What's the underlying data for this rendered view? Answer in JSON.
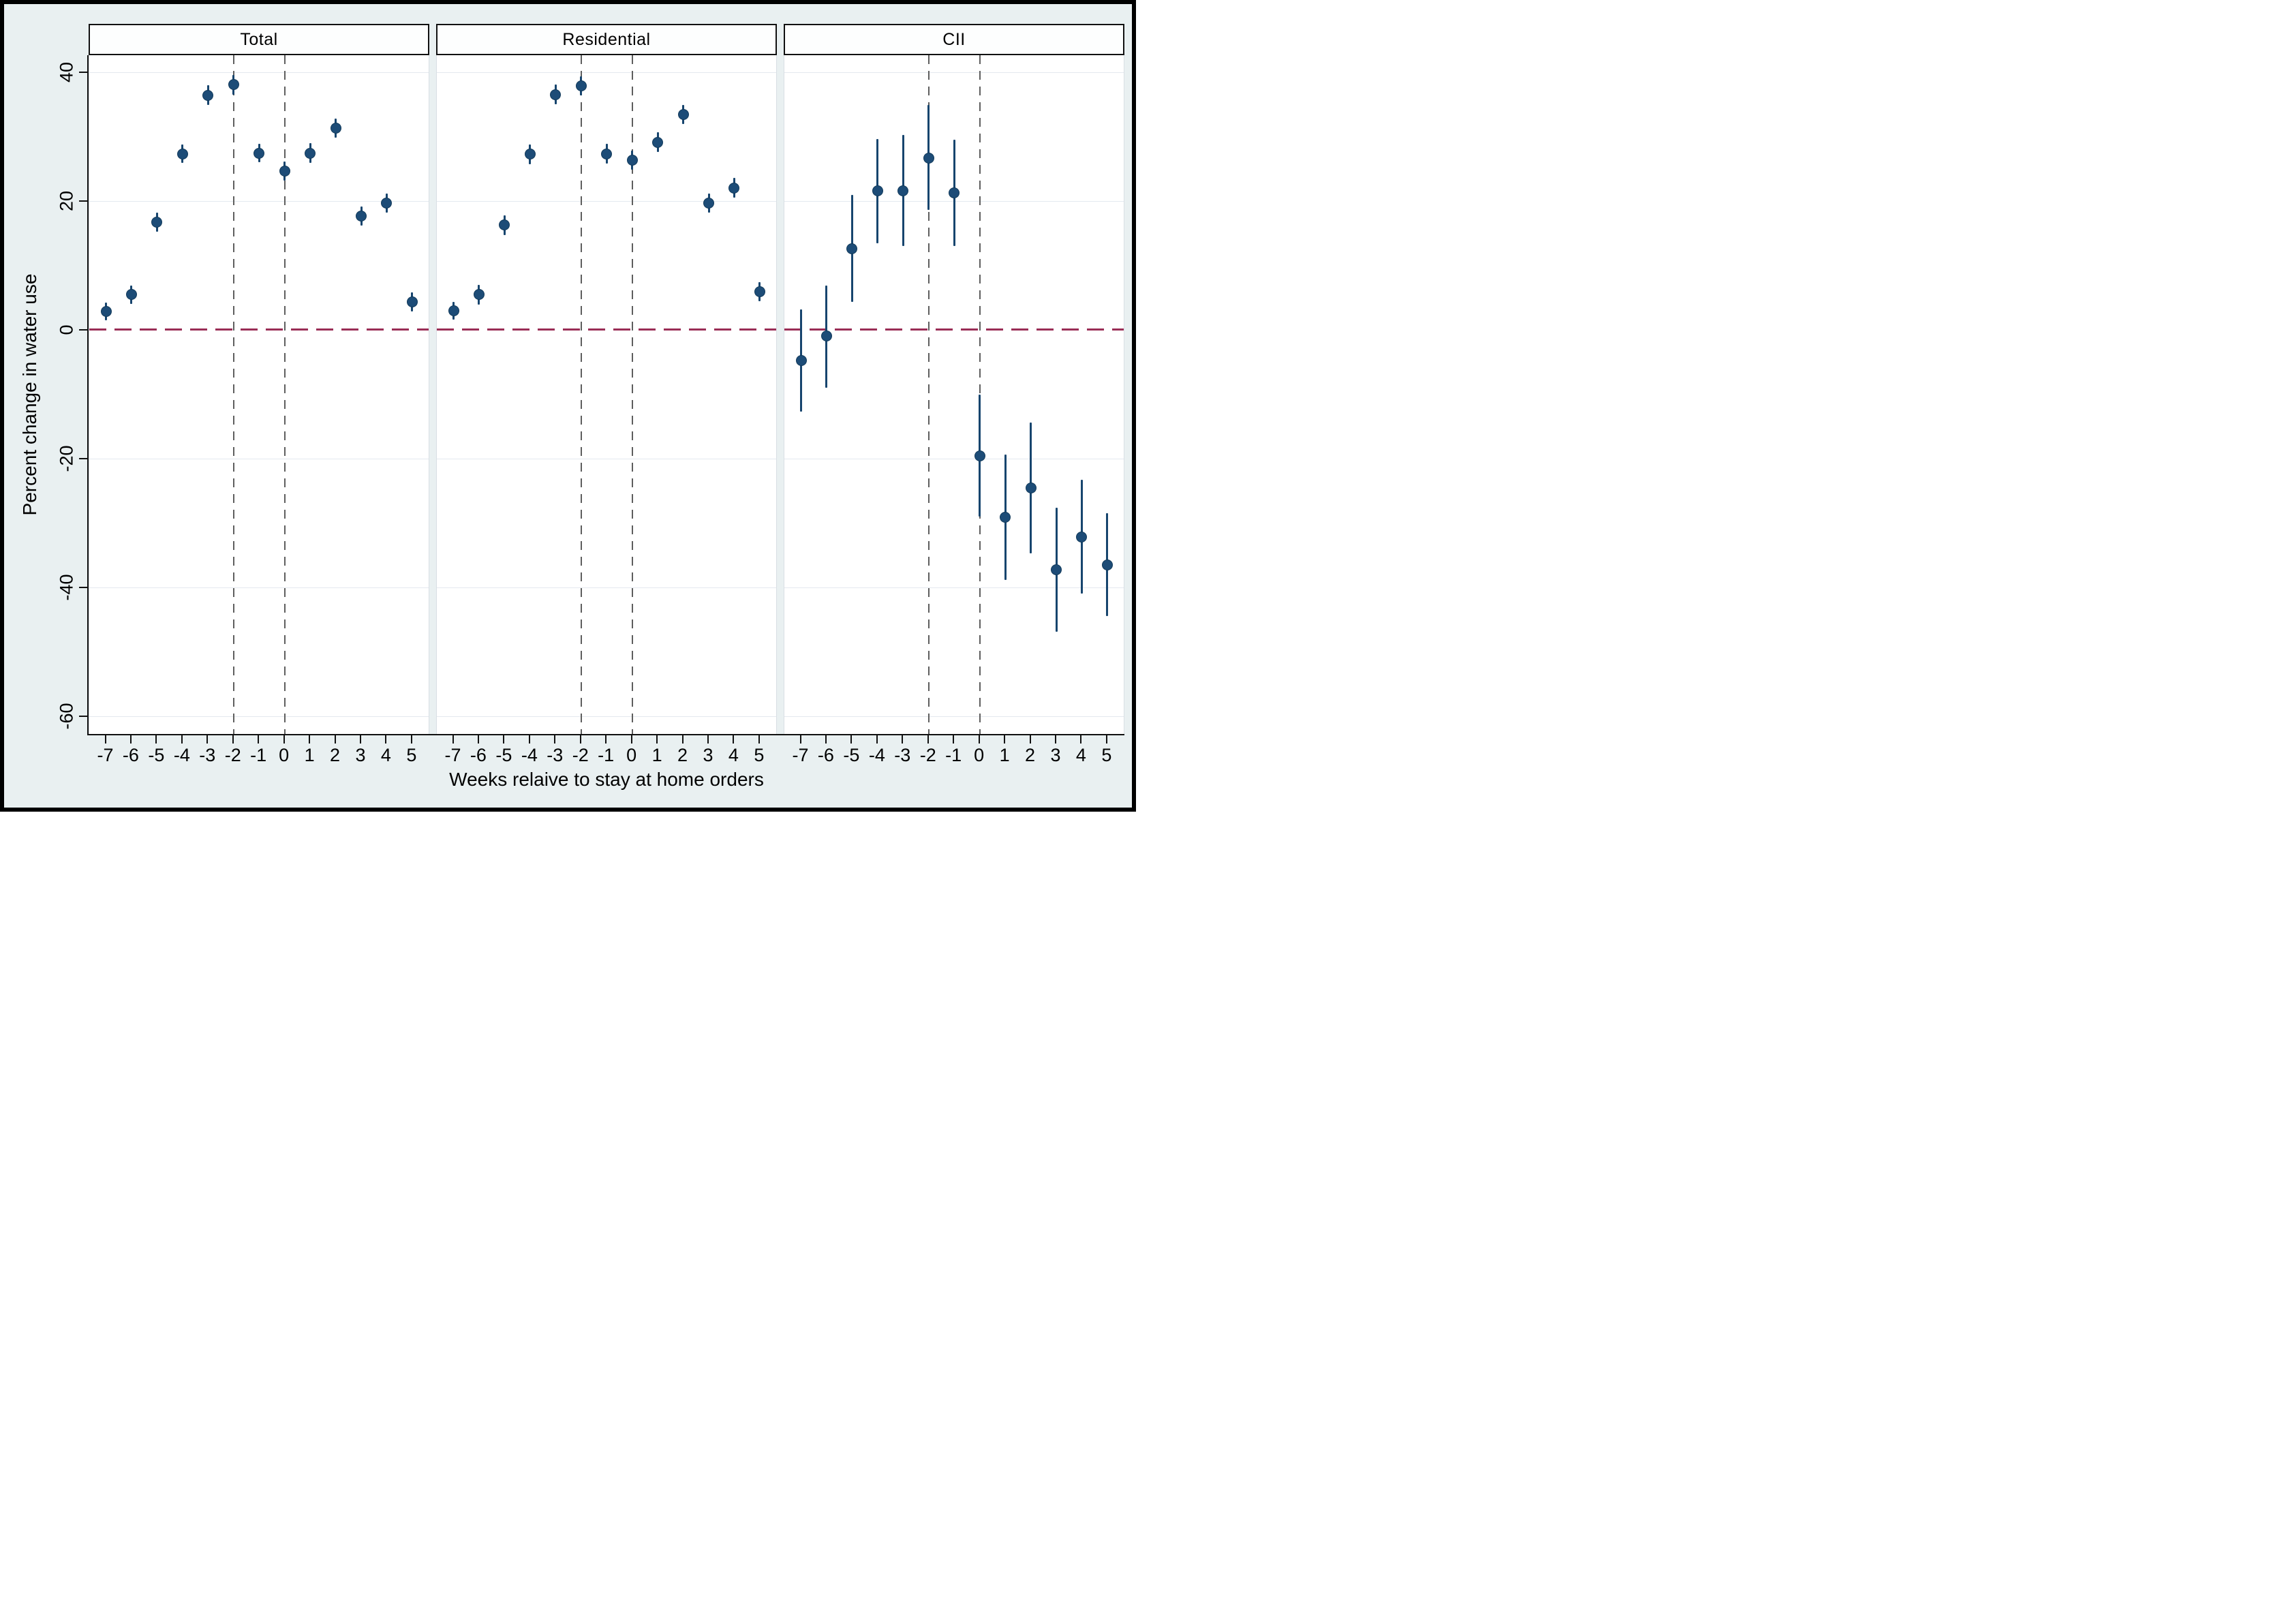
{
  "figure": {
    "x_axis_title": "Weeks relaive to stay at home orders",
    "y_axis_title": "Percent change in water use"
  },
  "chart_data": {
    "type": "scatter",
    "subtype": "coefficient-plot-with-95ci-three-facets",
    "facets": [
      "Total",
      "Residential",
      "CII"
    ],
    "x": [
      -7,
      -6,
      -5,
      -4,
      -3,
      -2,
      -1,
      0,
      1,
      2,
      3,
      4,
      5
    ],
    "x_tick_labels": [
      "-7",
      "-6",
      "-5",
      "-4",
      "-3",
      "-2",
      "-1",
      "0",
      "1",
      "2",
      "3",
      "4",
      "5"
    ],
    "y_ticks": [
      40,
      20,
      0,
      -20,
      -40,
      -60
    ],
    "y_tick_labels": [
      "40",
      "20",
      "0",
      "-20",
      "-40",
      "-60"
    ],
    "ylim": [
      -62.8,
      42.6
    ],
    "grid": "horizontal-light",
    "reference_hline_y": 0,
    "reference_vlines_x": [
      -2,
      0
    ],
    "legend": "none",
    "series": [
      {
        "name": "Total",
        "points": [
          {
            "x": -7,
            "y": 2.8,
            "lo": 1.4,
            "hi": 4.2
          },
          {
            "x": -6,
            "y": 5.4,
            "lo": 4.0,
            "hi": 6.8
          },
          {
            "x": -5,
            "y": 16.7,
            "lo": 15.2,
            "hi": 18.2
          },
          {
            "x": -4,
            "y": 27.3,
            "lo": 25.9,
            "hi": 28.7
          },
          {
            "x": -3,
            "y": 36.4,
            "lo": 34.9,
            "hi": 37.9
          },
          {
            "x": -2,
            "y": 38.0,
            "lo": 36.5,
            "hi": 39.5
          },
          {
            "x": -1,
            "y": 27.4,
            "lo": 26.0,
            "hi": 28.8
          },
          {
            "x": 0,
            "y": 24.6,
            "lo": 23.1,
            "hi": 26.1
          },
          {
            "x": 1,
            "y": 27.4,
            "lo": 25.9,
            "hi": 28.9
          },
          {
            "x": 2,
            "y": 31.3,
            "lo": 29.8,
            "hi": 32.8
          },
          {
            "x": 3,
            "y": 17.6,
            "lo": 16.1,
            "hi": 19.1
          },
          {
            "x": 4,
            "y": 19.6,
            "lo": 18.1,
            "hi": 21.1
          },
          {
            "x": 5,
            "y": 4.3,
            "lo": 2.8,
            "hi": 5.8
          }
        ]
      },
      {
        "name": "Residential",
        "points": [
          {
            "x": -7,
            "y": 2.9,
            "lo": 1.5,
            "hi": 4.3
          },
          {
            "x": -6,
            "y": 5.4,
            "lo": 3.9,
            "hi": 6.9
          },
          {
            "x": -5,
            "y": 16.2,
            "lo": 14.7,
            "hi": 17.7
          },
          {
            "x": -4,
            "y": 27.2,
            "lo": 25.7,
            "hi": 28.7
          },
          {
            "x": -3,
            "y": 36.5,
            "lo": 35.0,
            "hi": 38.0
          },
          {
            "x": -2,
            "y": 37.8,
            "lo": 36.3,
            "hi": 39.3
          },
          {
            "x": -1,
            "y": 27.3,
            "lo": 25.8,
            "hi": 28.8
          },
          {
            "x": 0,
            "y": 26.3,
            "lo": 24.8,
            "hi": 27.8
          },
          {
            "x": 1,
            "y": 29.1,
            "lo": 27.6,
            "hi": 30.6
          },
          {
            "x": 2,
            "y": 33.4,
            "lo": 31.9,
            "hi": 34.9
          },
          {
            "x": 3,
            "y": 19.6,
            "lo": 18.1,
            "hi": 21.1
          },
          {
            "x": 4,
            "y": 22.0,
            "lo": 20.5,
            "hi": 23.5
          },
          {
            "x": 5,
            "y": 5.9,
            "lo": 4.4,
            "hi": 7.4
          }
        ]
      },
      {
        "name": "CII",
        "points": [
          {
            "x": -7,
            "y": -4.8,
            "lo": -12.7,
            "hi": 3.1
          },
          {
            "x": -6,
            "y": -1.0,
            "lo": -9.0,
            "hi": 6.8
          },
          {
            "x": -5,
            "y": 12.5,
            "lo": 4.3,
            "hi": 20.9
          },
          {
            "x": -4,
            "y": 21.5,
            "lo": 13.4,
            "hi": 29.6
          },
          {
            "x": -3,
            "y": 21.5,
            "lo": 13.0,
            "hi": 30.2
          },
          {
            "x": -2,
            "y": 26.6,
            "lo": 18.6,
            "hi": 34.9
          },
          {
            "x": -1,
            "y": 21.2,
            "lo": 13.0,
            "hi": 29.5
          },
          {
            "x": 0,
            "y": -19.6,
            "lo": -29.0,
            "hi": -10.1
          },
          {
            "x": 1,
            "y": -29.2,
            "lo": -38.9,
            "hi": -19.4
          },
          {
            "x": 2,
            "y": -24.6,
            "lo": -34.8,
            "hi": -14.4
          },
          {
            "x": 3,
            "y": -37.3,
            "lo": -46.9,
            "hi": -27.7
          },
          {
            "x": 4,
            "y": -32.2,
            "lo": -41.0,
            "hi": -23.3
          },
          {
            "x": 5,
            "y": -36.6,
            "lo": -44.5,
            "hi": -28.5
          }
        ]
      }
    ],
    "colors": {
      "point_fill": "#1d4c77",
      "point_border": "#123a5a",
      "ci_line": "#17456e",
      "zero_line": "#9a2d56",
      "event_dash_line": "#5e5e5e",
      "gridline": "#e4e9ef",
      "figure_background": "#e9f0f1",
      "plot_background": "#ffffff",
      "axis": "#111111"
    }
  }
}
